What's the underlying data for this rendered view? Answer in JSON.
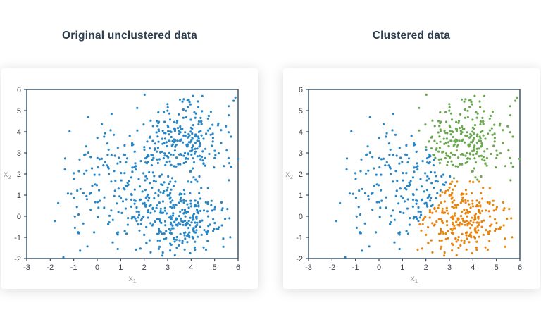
{
  "style": {
    "page_background": "#ffffff",
    "card_background": "#ffffff",
    "title_color": "#2c3e50",
    "spine_color": "#34495e",
    "tick_color": "#34495e",
    "tick_label_color": "#3d4248",
    "axis_label_color": "#9aa0a6",
    "point_blue": "#2786c5",
    "point_orange": "#e8840c",
    "point_green": "#6aa84f"
  },
  "chart_data": [
    {
      "type": "scatter",
      "title": "Original unclustered data",
      "xlabel_base": "x",
      "xlabel_sub": "1",
      "ylabel_base": "x",
      "ylabel_sub": "2",
      "xlim": [
        -3,
        6
      ],
      "ylim": [
        -2,
        6
      ],
      "xticks": [
        -3,
        -2,
        -1,
        0,
        1,
        2,
        3,
        4,
        5,
        6
      ],
      "yticks": [
        -2,
        -1,
        0,
        1,
        2,
        3,
        4,
        5,
        6
      ],
      "grid": false,
      "legend": false,
      "marker_diameter_px": 3,
      "single_color": "#2786c5",
      "points_model": {
        "total_points": 730,
        "blobs": [
          {
            "n": 200,
            "cx": 1.0,
            "cy": 1.4,
            "sx": 1.15,
            "sy": 1.5,
            "seed": 101
          },
          {
            "n": 265,
            "cx": 3.5,
            "cy": -0.05,
            "sx": 0.95,
            "sy": 0.8,
            "seed": 202
          },
          {
            "n": 265,
            "cx": 3.85,
            "cy": 3.5,
            "sx": 0.95,
            "sy": 0.95,
            "seed": 303
          }
        ]
      }
    },
    {
      "type": "scatter",
      "title": "Clustered data",
      "xlabel_base": "x",
      "xlabel_sub": "1",
      "ylabel_base": "x",
      "ylabel_sub": "2",
      "xlim": [
        -3,
        6
      ],
      "ylim": [
        -2,
        6
      ],
      "xticks": [
        -3,
        -2,
        -1,
        0,
        1,
        2,
        3,
        4,
        5,
        6
      ],
      "yticks": [
        -2,
        -1,
        0,
        1,
        2,
        3,
        4,
        5,
        6
      ],
      "grid": false,
      "legend": false,
      "marker_diameter_px": 3,
      "points_source": "same points as left chart, colored by nearest centroid",
      "clusters": [
        {
          "name": "cluster-left",
          "color": "#2786c5",
          "centroid": {
            "x": 1.25,
            "y": 1.45
          }
        },
        {
          "name": "cluster-bottom-right",
          "color": "#e8840c",
          "centroid": {
            "x": 3.55,
            "y": -0.05
          }
        },
        {
          "name": "cluster-top-right",
          "color": "#6aa84f",
          "centroid": {
            "x": 3.9,
            "y": 3.55
          }
        }
      ]
    }
  ]
}
